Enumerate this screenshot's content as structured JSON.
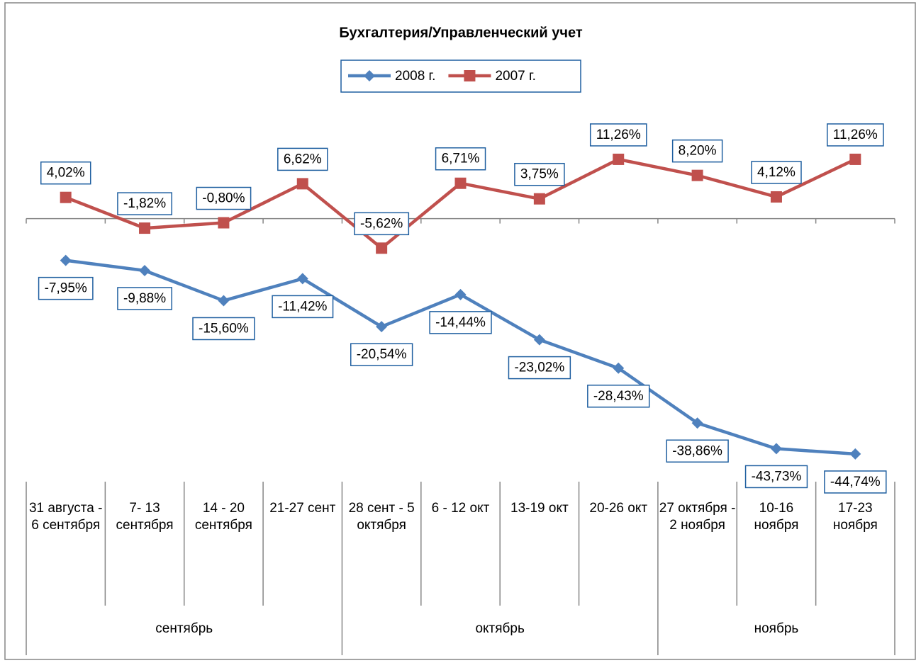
{
  "chart_data": {
    "type": "line",
    "title": "Бухгалтерия/Управленческий учет",
    "categories": [
      "31 августа - 6 сентября",
      "7- 13 сентября",
      "14 - 20 сентября",
      "21-27 сент",
      "28 сент - 5 октября",
      "6 - 12 окт",
      "13-19 окт",
      "20-26 окт",
      "27 октября - 2 ноября",
      "10-16 ноября",
      "17-23 ноября"
    ],
    "groups": [
      {
        "name": "сентябрь",
        "span": 4
      },
      {
        "name": "октябрь",
        "span": 4
      },
      {
        "name": "ноябрь",
        "span": 3
      }
    ],
    "series": [
      {
        "name": "2008 г.",
        "color": "#4f81bd",
        "marker": "diamond",
        "label_position": "below",
        "values": [
          -7.95,
          -9.88,
          -15.6,
          -11.42,
          -20.54,
          -14.44,
          -23.02,
          -28.43,
          -38.86,
          -43.73,
          -44.74
        ],
        "value_labels": [
          "-7,95%",
          "-9,88%",
          "-15,60%",
          "-11,42%",
          "-20,54%",
          "-14,44%",
          "-23,02%",
          "-28,43%",
          "-38,86%",
          "-43,73%",
          "-44,74%"
        ]
      },
      {
        "name": "2007 г.",
        "color": "#c0504d",
        "marker": "square",
        "label_position": "above",
        "values": [
          4.02,
          -1.82,
          -0.8,
          6.62,
          -5.62,
          6.71,
          3.75,
          11.26,
          8.2,
          4.12,
          11.26
        ],
        "value_labels": [
          "4,02%",
          "-1,82%",
          "-0,80%",
          "6,62%",
          "-5,62%",
          "6,71%",
          "3,75%",
          "11,26%",
          "8,20%",
          "4,12%",
          "11,26%"
        ]
      }
    ],
    "ylim": [
      -50,
      20
    ],
    "legend": "top"
  }
}
